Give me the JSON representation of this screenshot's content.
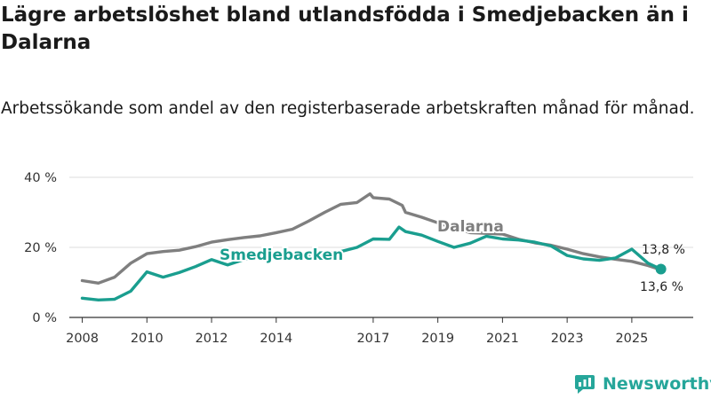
{
  "title": "Lägre arbetslöshet bland utlandsfödda i Smedjebacken än i Dalarna",
  "subtitle": "Arbetssökande som andel av den registerbaserade arbetskraften månad för månad.",
  "brand": "Newsworthy",
  "colors": {
    "dalarna": "#7f7f7f",
    "smedjebacken": "#1a9e8f",
    "grid": "#dcdcdc",
    "axis": "#333333"
  },
  "chart_data": {
    "type": "line",
    "title": "Lägre arbetslöshet bland utlandsfödda i Smedjebacken än i Dalarna",
    "xlabel": "",
    "ylabel": "",
    "xlim": [
      2007.6,
      2026.9
    ],
    "ylim": [
      0,
      40
    ],
    "y_ticks": [
      0,
      20,
      40
    ],
    "y_tick_labels": [
      "0 %",
      "20 %",
      "40 %"
    ],
    "x_ticks": [
      2008,
      2010,
      2012,
      2014,
      2017,
      2019,
      2021,
      2023,
      2025
    ],
    "x_tick_labels": [
      "2008",
      "2010",
      "2012",
      "2014",
      "2017",
      "2019",
      "2021",
      "2023",
      "2025"
    ],
    "grid": true,
    "series": [
      {
        "name": "Dalarna",
        "x": [
          2008.0,
          2008.5,
          2009.0,
          2009.5,
          2010.0,
          2010.5,
          2011.0,
          2011.5,
          2012.0,
          2012.5,
          2013.0,
          2013.5,
          2014.0,
          2014.5,
          2015.0,
          2015.5,
          2016.0,
          2016.5,
          2016.9,
          2017.0,
          2017.5,
          2017.9,
          2018.0,
          2018.5,
          2019.0,
          2019.5,
          2020.0,
          2020.5,
          2021.0,
          2021.5,
          2022.0,
          2022.5,
          2023.0,
          2023.5,
          2024.0,
          2024.5,
          2025.0,
          2025.5,
          2025.9
        ],
        "values": [
          10.5,
          9.8,
          11.5,
          15.5,
          18.2,
          18.8,
          19.2,
          20.2,
          21.5,
          22.2,
          22.8,
          23.3,
          24.2,
          25.2,
          27.5,
          30.0,
          32.3,
          32.8,
          35.3,
          34.2,
          33.8,
          32.0,
          30.0,
          28.6,
          27.0,
          25.5,
          24.2,
          24.0,
          23.8,
          22.3,
          21.3,
          20.6,
          19.5,
          18.2,
          17.3,
          16.6,
          16.0,
          14.8,
          13.6
        ],
        "end_label": "13,6 %"
      },
      {
        "name": "Smedjebacken",
        "x": [
          2008.0,
          2008.5,
          2009.0,
          2009.5,
          2010.0,
          2010.5,
          2011.0,
          2011.5,
          2012.0,
          2012.5,
          2013.0,
          2013.5,
          2014.0,
          2014.5,
          2015.0,
          2015.5,
          2016.0,
          2016.5,
          2017.0,
          2017.5,
          2017.8,
          2018.0,
          2018.5,
          2019.0,
          2019.5,
          2020.0,
          2020.5,
          2021.0,
          2021.5,
          2022.0,
          2022.5,
          2023.0,
          2023.5,
          2024.0,
          2024.5,
          2025.0,
          2025.5,
          2025.9
        ],
        "values": [
          5.5,
          5.0,
          5.2,
          7.5,
          13.0,
          11.5,
          12.8,
          14.5,
          16.5,
          15.0,
          16.5,
          17.5,
          18.0,
          17.5,
          18.0,
          18.3,
          18.8,
          20.0,
          22.4,
          22.3,
          25.8,
          24.5,
          23.5,
          21.7,
          20.0,
          21.2,
          23.2,
          22.4,
          22.1,
          21.5,
          20.4,
          17.7,
          16.7,
          16.3,
          17.0,
          19.5,
          15.5,
          13.8
        ],
        "end_label": "13,8 %"
      }
    ]
  }
}
